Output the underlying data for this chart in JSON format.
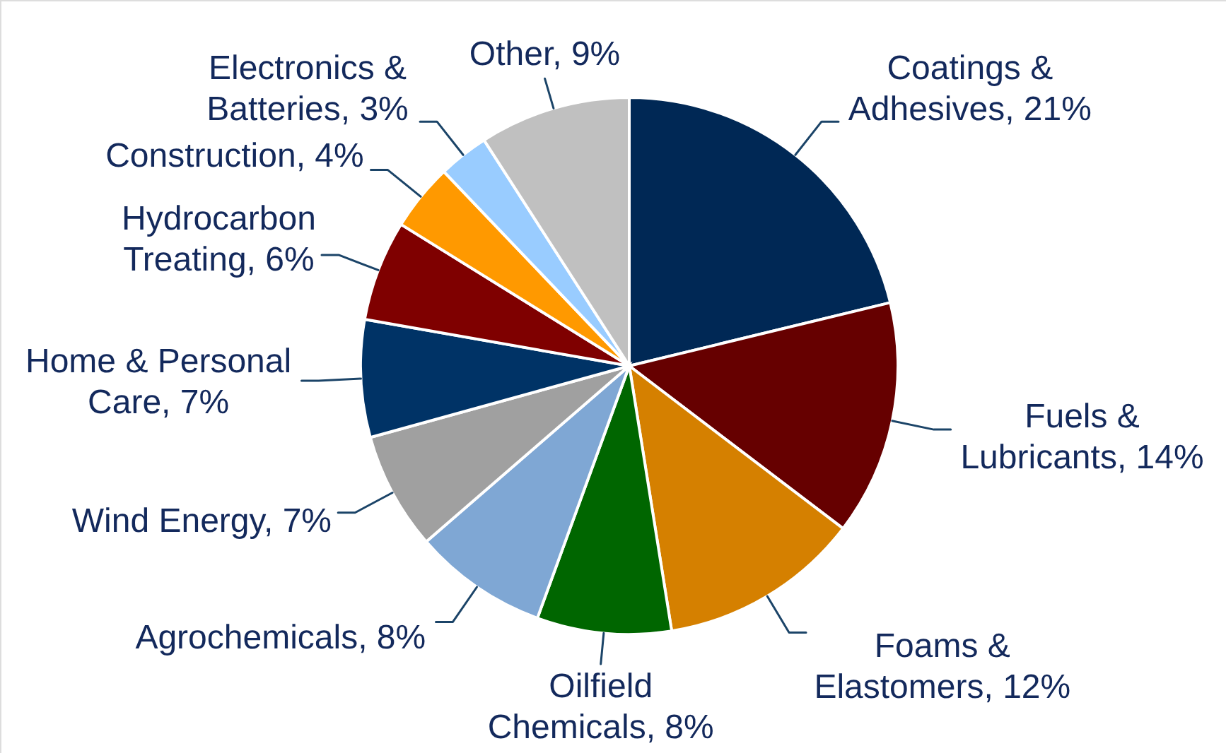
{
  "chart_data": {
    "type": "pie",
    "categories": [
      "Coatings & Adhesives",
      "Fuels & Lubricants",
      "Foams & Elastomers",
      "Oilfield Chemicals",
      "Agrochemicals",
      "Wind Energy",
      "Home & Personal Care",
      "Hydrocarbon Treating",
      "Construction",
      "Electronics & Batteries",
      "Other"
    ],
    "values": [
      21,
      14,
      12,
      8,
      8,
      7,
      7,
      6,
      4,
      3,
      9
    ],
    "value_labels": [
      "21%",
      "14%",
      "12%",
      "8%",
      "8%",
      "7%",
      "7%",
      "6%",
      "4%",
      "3%",
      "9%"
    ],
    "colors": [
      "#002855",
      "#660000",
      "#d58000",
      "#006600",
      "#7fa7d4",
      "#a0a0a0",
      "#003366",
      "#7f0000",
      "#ff9900",
      "#99ccff",
      "#c0c0c0"
    ]
  }
}
